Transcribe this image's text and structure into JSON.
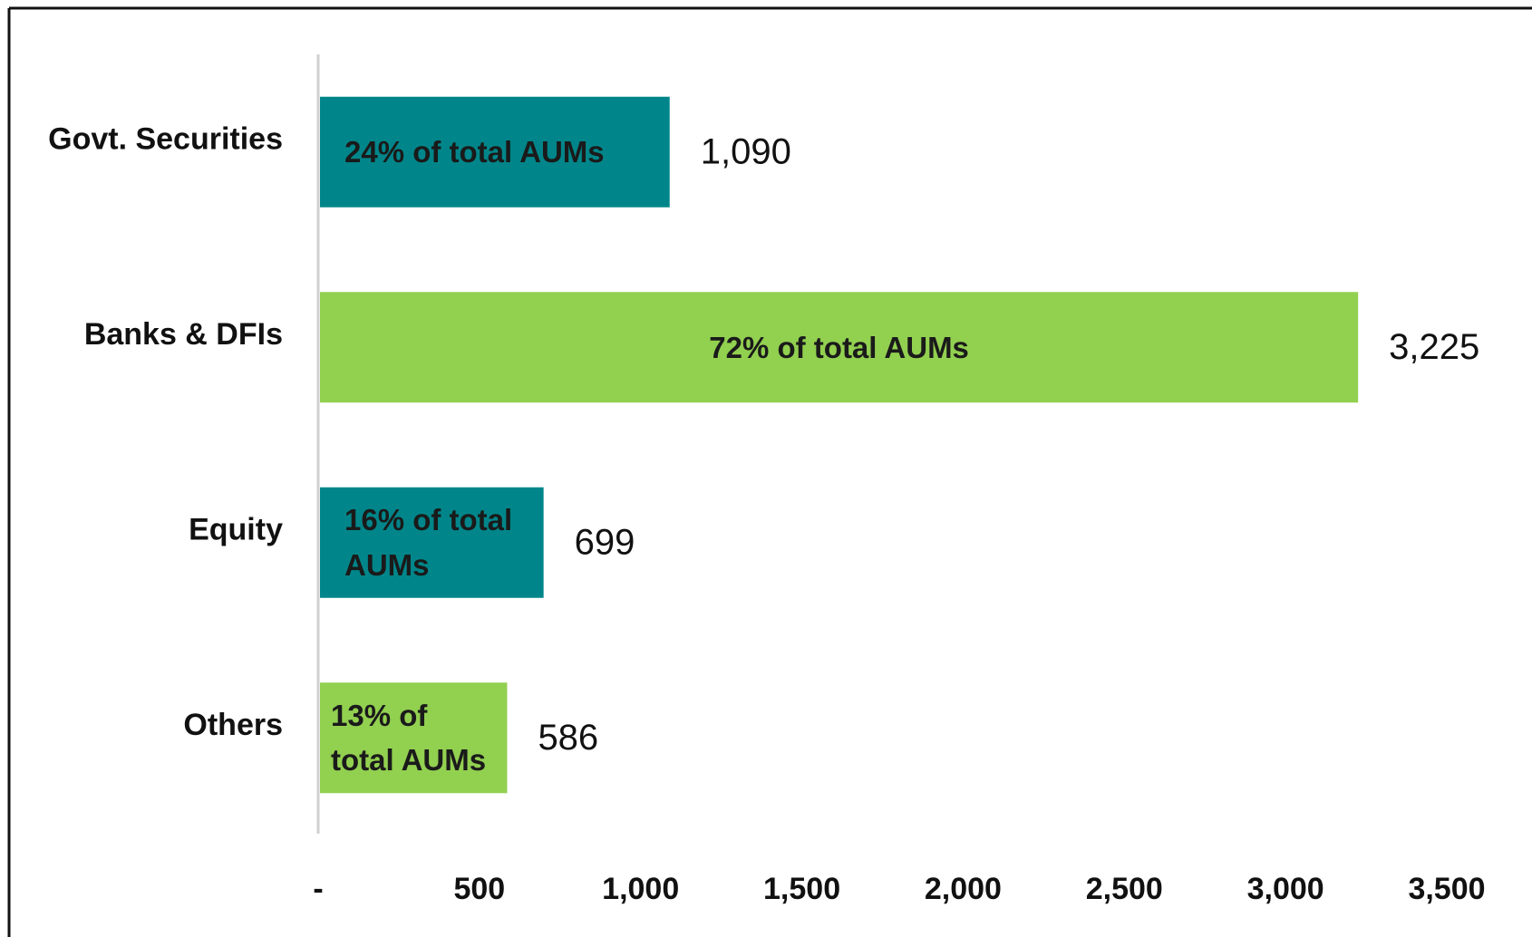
{
  "chart_data": {
    "type": "hbar",
    "categories": [
      "Govt. Securities",
      "Banks & DFIs",
      "Equity",
      "Others"
    ],
    "values": [
      1090,
      3225,
      699,
      586
    ],
    "value_labels": [
      "1,090",
      "3,225",
      "699",
      "586"
    ],
    "bar_labels": [
      "24% of total AUMs",
      "72% of total AUMs",
      "16% of total AUMs",
      "13% of total AUMs"
    ],
    "colors": [
      "#00868a",
      "#92d050",
      "#00868a",
      "#92d050"
    ],
    "xlim": [
      0,
      3500
    ],
    "xticks": [
      {
        "value": 0,
        "label": "-"
      },
      500,
      {
        "value": 1000,
        "label": "1,000"
      },
      {
        "value": 1500,
        "label": "1,500"
      },
      {
        "value": 2000,
        "label": "2,000"
      },
      {
        "value": 2500,
        "label": "2,500"
      },
      {
        "value": 3000,
        "label": "3,000"
      },
      {
        "value": 3500,
        "label": "3,500"
      }
    ],
    "grid": false
  }
}
